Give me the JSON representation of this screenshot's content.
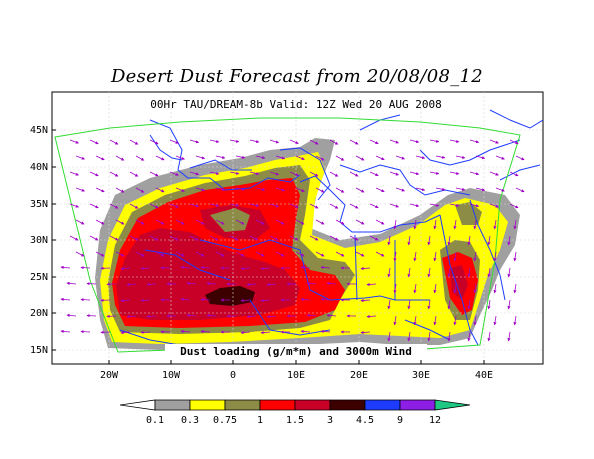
{
  "title": "Desert Dust Forecast from 20/08/08_12",
  "subtitle": "00Hr TAU/DREAM-8b Valid: 12Z Wed 20 AUG 2008",
  "caption": "Dust loading (g/m*m) and 3000m Wind",
  "lat_labels": [
    "45N",
    "40N",
    "35N",
    "30N",
    "25N",
    "20N",
    "15N"
  ],
  "lon_labels": [
    "20W",
    "10W",
    "0",
    "10E",
    "20E",
    "30E",
    "40E"
  ],
  "colorbar": {
    "levels": [
      "0.1",
      "0.3",
      "0.75",
      "1",
      "1.5",
      "3",
      "4.5",
      "9",
      "12"
    ],
    "colors": [
      "#ffffff",
      "#a0a0a0",
      "#ffff00",
      "#8c8c46",
      "#ff0000",
      "#c80028",
      "#3c0000",
      "#1e3cff",
      "#8c1ee6",
      "#1ec882"
    ]
  },
  "colors": {
    "coast": "#1e3cff",
    "domain_border": "#32dc32",
    "wind_arrows": "#a000c8"
  }
}
